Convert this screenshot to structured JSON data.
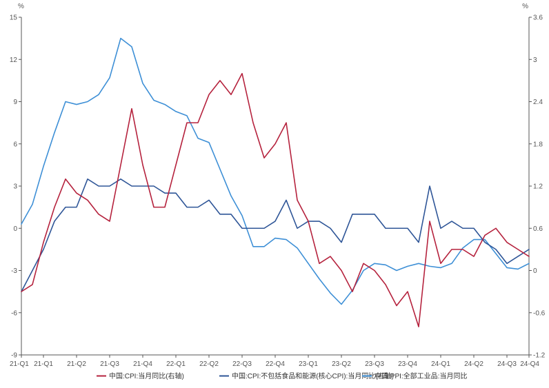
{
  "chart_data": {
    "type": "line",
    "left_axis": {
      "unit": "%",
      "ylim": [
        -9,
        15
      ],
      "ticks": [
        "-9",
        "-6",
        "-3",
        "0",
        "3",
        "6",
        "9",
        "12",
        "15"
      ]
    },
    "right_axis": {
      "unit": "%",
      "ylim": [
        -1.2,
        3.6
      ],
      "ticks": [
        "-1.2",
        "-0.6",
        "0",
        "0.6",
        "1.2",
        "1.8",
        "2.4",
        "3",
        "3.6"
      ]
    },
    "x_tick_labels": [
      "21-Q1",
      "21-Q1",
      "21-Q2",
      "21-Q3",
      "21-Q4",
      "22-Q1",
      "22-Q2",
      "22-Q3",
      "22-Q4",
      "23-Q1",
      "23-Q2",
      "23-Q3",
      "23-Q4",
      "24-Q1",
      "24-Q2",
      "24-Q3",
      "24-Q4"
    ],
    "x_tick_months": [
      0,
      2,
      5,
      8,
      11,
      14,
      17,
      20,
      23,
      26,
      29,
      32,
      35,
      38,
      41,
      44,
      46
    ],
    "x_range": [
      0,
      46
    ],
    "grid": false,
    "legend_position": "bottom",
    "series": [
      {
        "name": "中国:CPI:当月同比(右轴)",
        "axis": "right",
        "color": "#b5223d",
        "x": [
          0,
          1,
          2,
          3,
          4,
          5,
          6,
          7,
          8,
          9,
          10,
          11,
          12,
          13,
          14,
          15,
          16,
          17,
          18,
          19,
          20,
          21,
          22,
          23,
          24,
          25,
          26,
          27,
          28,
          29,
          30,
          31,
          32,
          33,
          34,
          35,
          36,
          37,
          38,
          39,
          40,
          41,
          42,
          43,
          44,
          45,
          46
        ],
        "values": [
          -0.3,
          -0.2,
          0.4,
          0.9,
          1.3,
          1.1,
          1.0,
          0.8,
          0.7,
          1.5,
          2.3,
          1.5,
          0.9,
          0.9,
          1.5,
          2.1,
          2.1,
          2.5,
          2.7,
          2.5,
          2.8,
          2.1,
          1.6,
          1.8,
          2.1,
          1.0,
          0.7,
          0.1,
          0.2,
          0.0,
          -0.3,
          0.1,
          0.0,
          -0.2,
          -0.5,
          -0.3,
          -0.8,
          0.7,
          0.1,
          0.3,
          0.3,
          0.2,
          0.5,
          0.6,
          0.4,
          0.3,
          0.2
        ]
      },
      {
        "name": "中国:CPI:不包括食品和能源(核心CPI):当月同比(右轴)",
        "axis": "right",
        "color": "#2e5597",
        "x": [
          0,
          1,
          2,
          3,
          4,
          5,
          6,
          7,
          8,
          9,
          10,
          11,
          12,
          13,
          14,
          15,
          16,
          17,
          18,
          19,
          20,
          21,
          22,
          23,
          24,
          25,
          26,
          27,
          28,
          29,
          30,
          31,
          32,
          33,
          34,
          35,
          36,
          37,
          38,
          39,
          40,
          41,
          42,
          43,
          44,
          45,
          46
        ],
        "values": [
          -0.3,
          0.0,
          0.3,
          0.7,
          0.9,
          0.9,
          1.3,
          1.2,
          1.2,
          1.3,
          1.2,
          1.2,
          1.2,
          1.1,
          1.1,
          0.9,
          0.9,
          1.0,
          0.8,
          0.8,
          0.6,
          0.6,
          0.6,
          0.7,
          1.0,
          0.6,
          0.7,
          0.7,
          0.6,
          0.4,
          0.8,
          0.8,
          0.8,
          0.6,
          0.6,
          0.6,
          0.4,
          1.2,
          0.6,
          0.7,
          0.6,
          0.6,
          0.4,
          0.3,
          0.1,
          0.2,
          0.3
        ]
      },
      {
        "name": "中国:PPI:全部工业品:当月同比",
        "axis": "left",
        "color": "#3d8fd6",
        "x": [
          0,
          1,
          2,
          3,
          4,
          5,
          6,
          7,
          8,
          9,
          10,
          11,
          12,
          13,
          14,
          15,
          16,
          17,
          18,
          19,
          20,
          21,
          22,
          23,
          24,
          25,
          26,
          27,
          28,
          29,
          30,
          31,
          32,
          33,
          34,
          35,
          36,
          37,
          38,
          39,
          40,
          41,
          42,
          43,
          44,
          45,
          46
        ],
        "values": [
          0.3,
          1.7,
          4.4,
          6.8,
          9.0,
          8.8,
          9.0,
          9.5,
          10.7,
          13.5,
          12.9,
          10.3,
          9.1,
          8.8,
          8.3,
          8.0,
          6.4,
          6.1,
          4.2,
          2.3,
          0.9,
          -1.3,
          -1.3,
          -0.7,
          -0.8,
          -1.4,
          -2.5,
          -3.6,
          -4.6,
          -5.4,
          -4.4,
          -3.0,
          -2.5,
          -2.6,
          -3.0,
          -2.7,
          -2.5,
          -2.7,
          -2.8,
          -2.5,
          -1.4,
          -0.8,
          -0.8,
          -1.8,
          -2.8,
          -2.9,
          -2.5
        ]
      }
    ]
  }
}
